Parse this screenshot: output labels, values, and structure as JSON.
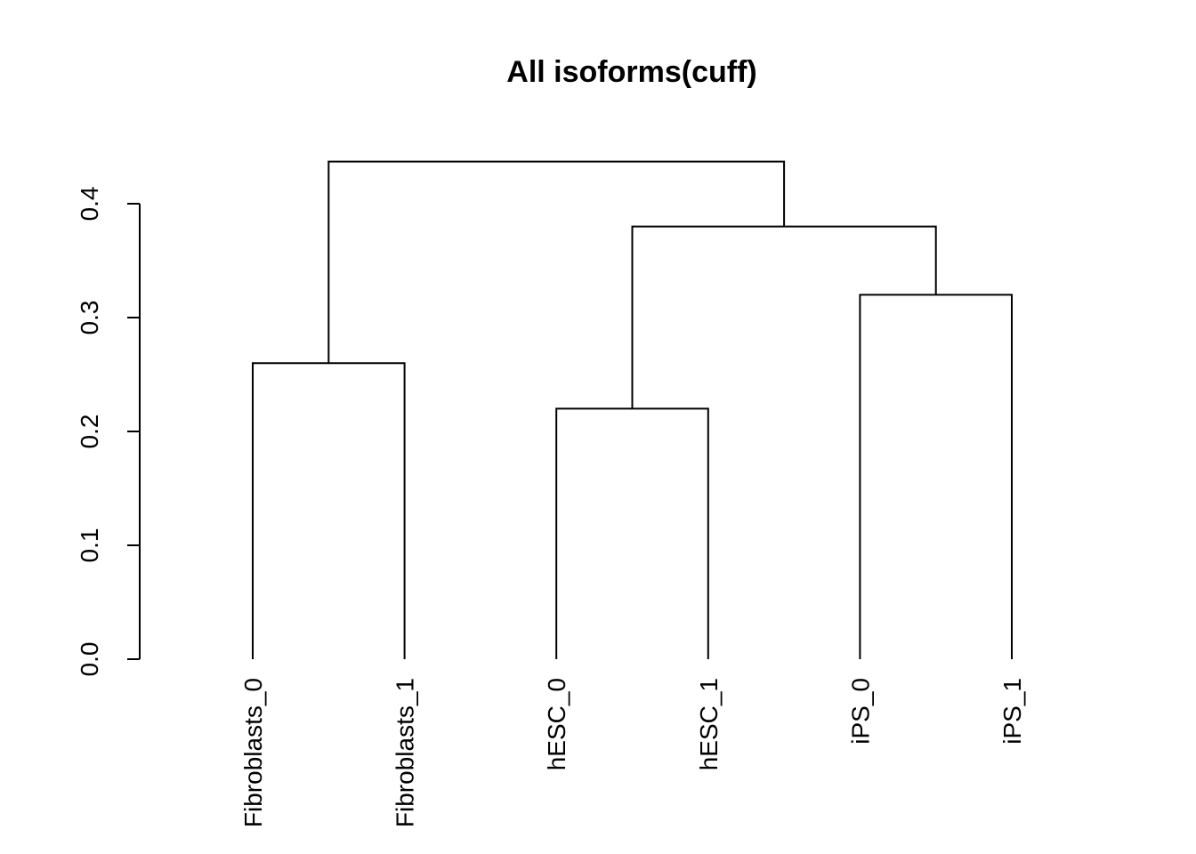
{
  "chart_data": {
    "type": "dendrogram",
    "title": "All isoforms(cuff)",
    "xlabel": "",
    "ylabel": "",
    "ylim": [
      0,
      0.4
    ],
    "yticks": [
      0.0,
      0.1,
      0.2,
      0.3,
      0.4
    ],
    "ytick_labels": [
      "0.0",
      "0.1",
      "0.2",
      "0.3",
      "0.4"
    ],
    "leaves": [
      "Fibroblasts_0",
      "Fibroblasts_1",
      "hESC_0",
      "hESC_1",
      "iPS_0",
      "iPS_1"
    ],
    "merges": [
      {
        "left": "Fibroblasts_0",
        "right": "Fibroblasts_1",
        "height": 0.26
      },
      {
        "left": "hESC_0",
        "right": "hESC_1",
        "height": 0.22
      },
      {
        "left": "iPS_0",
        "right": "iPS_1",
        "height": 0.32
      },
      {
        "left": "hESC_0,hESC_1",
        "right": "iPS_0,iPS_1",
        "height": 0.38
      },
      {
        "left": "Fibroblasts_0,Fibroblasts_1",
        "right": "hESC_0,hESC_1,iPS_0,iPS_1",
        "height": 0.437
      }
    ],
    "grid": false,
    "legend": "none"
  }
}
